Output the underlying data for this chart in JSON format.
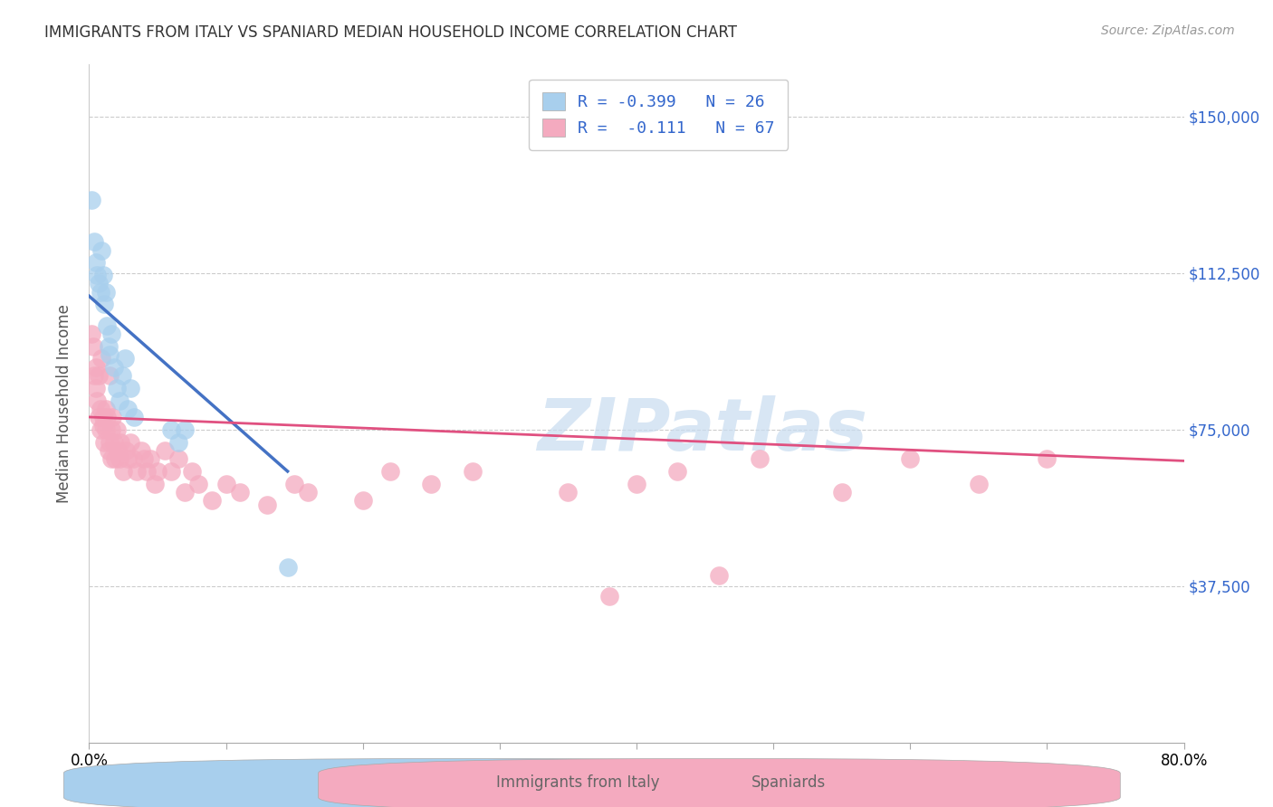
{
  "title": "IMMIGRANTS FROM ITALY VS SPANIARD MEDIAN HOUSEHOLD INCOME CORRELATION CHART",
  "source": "Source: ZipAtlas.com",
  "ylabel": "Median Household Income",
  "yticks": [
    0,
    37500,
    75000,
    112500,
    150000
  ],
  "ytick_labels": [
    "",
    "$37,500",
    "$75,000",
    "$112,500",
    "$150,000"
  ],
  "xmin": 0.0,
  "xmax": 0.8,
  "ymin": 0,
  "ymax": 162500,
  "legend_italy_R": "R = -0.399",
  "legend_italy_N": "N = 26",
  "legend_spain_R": "R =  -0.111",
  "legend_spain_N": "N = 67",
  "watermark": "ZIPatlas",
  "italy_color": "#A8CFED",
  "italy_line_color": "#4472C4",
  "spain_color": "#F4AABF",
  "spain_line_color": "#E05080",
  "dashed_line_color": "#A8CFED",
  "legend_text_color": "#3366CC",
  "italy_scatter_x": [
    0.002,
    0.004,
    0.005,
    0.006,
    0.007,
    0.008,
    0.009,
    0.01,
    0.011,
    0.012,
    0.013,
    0.014,
    0.015,
    0.016,
    0.018,
    0.02,
    0.022,
    0.024,
    0.026,
    0.028,
    0.03,
    0.033,
    0.06,
    0.065,
    0.07,
    0.145
  ],
  "italy_scatter_y": [
    130000,
    120000,
    115000,
    112000,
    110000,
    108000,
    118000,
    112000,
    105000,
    108000,
    100000,
    95000,
    93000,
    98000,
    90000,
    85000,
    82000,
    88000,
    92000,
    80000,
    85000,
    78000,
    75000,
    72000,
    75000,
    42000
  ],
  "spain_scatter_x": [
    0.002,
    0.003,
    0.004,
    0.005,
    0.005,
    0.006,
    0.007,
    0.007,
    0.008,
    0.008,
    0.009,
    0.01,
    0.01,
    0.011,
    0.012,
    0.012,
    0.013,
    0.014,
    0.015,
    0.015,
    0.016,
    0.016,
    0.017,
    0.018,
    0.019,
    0.02,
    0.021,
    0.022,
    0.023,
    0.025,
    0.027,
    0.028,
    0.03,
    0.032,
    0.035,
    0.038,
    0.04,
    0.042,
    0.045,
    0.048,
    0.05,
    0.055,
    0.06,
    0.065,
    0.07,
    0.075,
    0.08,
    0.09,
    0.1,
    0.11,
    0.13,
    0.15,
    0.16,
    0.2,
    0.22,
    0.25,
    0.28,
    0.35,
    0.38,
    0.4,
    0.43,
    0.46,
    0.49,
    0.55,
    0.6,
    0.65,
    0.7
  ],
  "spain_scatter_y": [
    98000,
    95000,
    88000,
    90000,
    85000,
    82000,
    78000,
    88000,
    75000,
    80000,
    92000,
    76000,
    78000,
    72000,
    75000,
    80000,
    78000,
    70000,
    72000,
    88000,
    75000,
    68000,
    78000,
    72000,
    68000,
    75000,
    70000,
    68000,
    72000,
    65000,
    70000,
    68000,
    72000,
    68000,
    65000,
    70000,
    68000,
    65000,
    68000,
    62000,
    65000,
    70000,
    65000,
    68000,
    60000,
    65000,
    62000,
    58000,
    62000,
    60000,
    57000,
    62000,
    60000,
    58000,
    65000,
    62000,
    65000,
    60000,
    35000,
    62000,
    65000,
    40000,
    68000,
    60000,
    68000,
    62000,
    68000
  ]
}
